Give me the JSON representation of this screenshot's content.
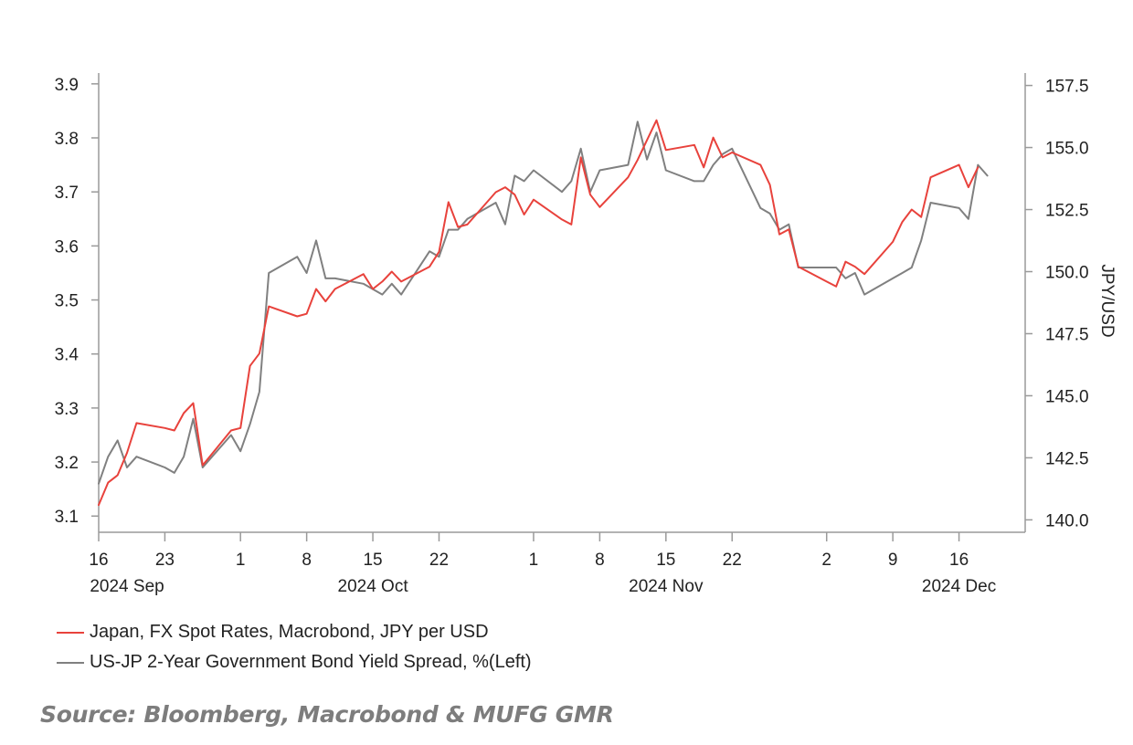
{
  "chart_data": {
    "type": "line",
    "x_axis": {
      "range": [
        "2024-09-16",
        "2024-12-23"
      ],
      "day_ticks": [
        {
          "date": "2024-09-16",
          "label": "16"
        },
        {
          "date": "2024-09-23",
          "label": "23"
        },
        {
          "date": "2024-10-01",
          "label": "1"
        },
        {
          "date": "2024-10-08",
          "label": "8"
        },
        {
          "date": "2024-10-15",
          "label": "15"
        },
        {
          "date": "2024-10-22",
          "label": "22"
        },
        {
          "date": "2024-11-01",
          "label": "1"
        },
        {
          "date": "2024-11-08",
          "label": "8"
        },
        {
          "date": "2024-11-15",
          "label": "15"
        },
        {
          "date": "2024-11-22",
          "label": "22"
        },
        {
          "date": "2024-12-02",
          "label": "2"
        },
        {
          "date": "2024-12-09",
          "label": "9"
        },
        {
          "date": "2024-12-16",
          "label": "16"
        }
      ],
      "month_labels": [
        {
          "date": "2024-09-19",
          "label": "2024 Sep"
        },
        {
          "date": "2024-10-15",
          "label": "2024 Oct"
        },
        {
          "date": "2024-11-15",
          "label": "2024 Nov"
        },
        {
          "date": "2024-12-16",
          "label": "2024 Dec"
        }
      ]
    },
    "y_left": {
      "range": [
        3.07,
        3.92
      ],
      "ticks": [
        {
          "value": 3.1,
          "label": "3.1"
        },
        {
          "value": 3.2,
          "label": "3.2"
        },
        {
          "value": 3.3,
          "label": "3.3"
        },
        {
          "value": 3.4,
          "label": "3.4"
        },
        {
          "value": 3.5,
          "label": "3.5"
        },
        {
          "value": 3.6,
          "label": "3.6"
        },
        {
          "value": 3.7,
          "label": "3.7"
        },
        {
          "value": 3.8,
          "label": "3.8"
        },
        {
          "value": 3.9,
          "label": "3.9"
        }
      ]
    },
    "y_right": {
      "label": "JPY/USD",
      "range": [
        139.5,
        158.0
      ],
      "ticks": [
        {
          "value": 140.0,
          "label": "140.0"
        },
        {
          "value": 142.5,
          "label": "142.5"
        },
        {
          "value": 145.0,
          "label": "145.0"
        },
        {
          "value": 147.5,
          "label": "147.5"
        },
        {
          "value": 150.0,
          "label": "150.0"
        },
        {
          "value": 152.5,
          "label": "152.5"
        },
        {
          "value": 155.0,
          "label": "155.0"
        },
        {
          "value": 157.5,
          "label": "157.5"
        }
      ]
    },
    "grid": false,
    "legend_position": "bottom-left",
    "series": [
      {
        "name": "Japan, FX Spot Rates, Macrobond, JPY per USD",
        "axis": "right",
        "color": "#e8423c",
        "points": [
          [
            "2024-09-16",
            140.6
          ],
          [
            "2024-09-17",
            141.5
          ],
          [
            "2024-09-18",
            141.8
          ],
          [
            "2024-09-19",
            142.7
          ],
          [
            "2024-09-20",
            143.9
          ],
          [
            "2024-09-23",
            143.7
          ],
          [
            "2024-09-24",
            143.6
          ],
          [
            "2024-09-25",
            144.3
          ],
          [
            "2024-09-26",
            144.7
          ],
          [
            "2024-09-27",
            142.2
          ],
          [
            "2024-09-30",
            143.6
          ],
          [
            "2024-10-01",
            143.7
          ],
          [
            "2024-10-02",
            146.2
          ],
          [
            "2024-10-03",
            146.7
          ],
          [
            "2024-10-04",
            148.6
          ],
          [
            "2024-10-07",
            148.2
          ],
          [
            "2024-10-08",
            148.3
          ],
          [
            "2024-10-09",
            149.3
          ],
          [
            "2024-10-10",
            148.8
          ],
          [
            "2024-10-11",
            149.3
          ],
          [
            "2024-10-14",
            149.9
          ],
          [
            "2024-10-15",
            149.3
          ],
          [
            "2024-10-16",
            149.6
          ],
          [
            "2024-10-17",
            150.0
          ],
          [
            "2024-10-18",
            149.6
          ],
          [
            "2024-10-21",
            150.2
          ],
          [
            "2024-10-22",
            150.8
          ],
          [
            "2024-10-23",
            152.8
          ],
          [
            "2024-10-24",
            151.8
          ],
          [
            "2024-10-25",
            151.9
          ],
          [
            "2024-10-28",
            153.2
          ],
          [
            "2024-10-29",
            153.4
          ],
          [
            "2024-10-30",
            153.1
          ],
          [
            "2024-10-31",
            152.3
          ],
          [
            "2024-11-01",
            152.9
          ],
          [
            "2024-11-04",
            152.1
          ],
          [
            "2024-11-05",
            151.9
          ],
          [
            "2024-11-06",
            154.6
          ],
          [
            "2024-11-07",
            153.1
          ],
          [
            "2024-11-08",
            152.6
          ],
          [
            "2024-11-11",
            153.8
          ],
          [
            "2024-11-12",
            154.5
          ],
          [
            "2024-11-13",
            155.3
          ],
          [
            "2024-11-14",
            156.1
          ],
          [
            "2024-11-15",
            154.9
          ],
          [
            "2024-11-18",
            155.1
          ],
          [
            "2024-11-19",
            154.2
          ],
          [
            "2024-11-20",
            155.4
          ],
          [
            "2024-11-21",
            154.6
          ],
          [
            "2024-11-22",
            154.8
          ],
          [
            "2024-11-25",
            154.3
          ],
          [
            "2024-11-26",
            153.5
          ],
          [
            "2024-11-27",
            151.5
          ],
          [
            "2024-11-28",
            151.7
          ],
          [
            "2024-11-29",
            150.2
          ],
          [
            "2024-12-02",
            149.6
          ],
          [
            "2024-12-03",
            149.4
          ],
          [
            "2024-12-04",
            150.4
          ],
          [
            "2024-12-05",
            150.2
          ],
          [
            "2024-12-06",
            149.9
          ],
          [
            "2024-12-09",
            151.2
          ],
          [
            "2024-12-10",
            152.0
          ],
          [
            "2024-12-11",
            152.5
          ],
          [
            "2024-12-12",
            152.2
          ],
          [
            "2024-12-13",
            153.8
          ],
          [
            "2024-12-16",
            154.3
          ],
          [
            "2024-12-17",
            153.4
          ],
          [
            "2024-12-18",
            154.2
          ]
        ]
      },
      {
        "name": "US-JP 2-Year Government Bond Yield Spread, %(Left)",
        "axis": "left",
        "color": "#808080",
        "points": [
          [
            "2024-09-16",
            3.16
          ],
          [
            "2024-09-17",
            3.21
          ],
          [
            "2024-09-18",
            3.24
          ],
          [
            "2024-09-19",
            3.19
          ],
          [
            "2024-09-20",
            3.21
          ],
          [
            "2024-09-23",
            3.19
          ],
          [
            "2024-09-24",
            3.18
          ],
          [
            "2024-09-25",
            3.21
          ],
          [
            "2024-09-26",
            3.28
          ],
          [
            "2024-09-27",
            3.19
          ],
          [
            "2024-09-30",
            3.25
          ],
          [
            "2024-10-01",
            3.22
          ],
          [
            "2024-10-02",
            3.27
          ],
          [
            "2024-10-03",
            3.33
          ],
          [
            "2024-10-04",
            3.55
          ],
          [
            "2024-10-07",
            3.58
          ],
          [
            "2024-10-08",
            3.55
          ],
          [
            "2024-10-09",
            3.61
          ],
          [
            "2024-10-10",
            3.54
          ],
          [
            "2024-10-11",
            3.54
          ],
          [
            "2024-10-14",
            3.53
          ],
          [
            "2024-10-15",
            3.52
          ],
          [
            "2024-10-16",
            3.51
          ],
          [
            "2024-10-17",
            3.53
          ],
          [
            "2024-10-18",
            3.51
          ],
          [
            "2024-10-21",
            3.59
          ],
          [
            "2024-10-22",
            3.58
          ],
          [
            "2024-10-23",
            3.63
          ],
          [
            "2024-10-24",
            3.63
          ],
          [
            "2024-10-25",
            3.65
          ],
          [
            "2024-10-28",
            3.68
          ],
          [
            "2024-10-29",
            3.64
          ],
          [
            "2024-10-30",
            3.73
          ],
          [
            "2024-10-31",
            3.72
          ],
          [
            "2024-11-01",
            3.74
          ],
          [
            "2024-11-04",
            3.7
          ],
          [
            "2024-11-05",
            3.72
          ],
          [
            "2024-11-06",
            3.78
          ],
          [
            "2024-11-07",
            3.7
          ],
          [
            "2024-11-08",
            3.74
          ],
          [
            "2024-11-11",
            3.75
          ],
          [
            "2024-11-12",
            3.83
          ],
          [
            "2024-11-13",
            3.76
          ],
          [
            "2024-11-14",
            3.81
          ],
          [
            "2024-11-15",
            3.74
          ],
          [
            "2024-11-18",
            3.72
          ],
          [
            "2024-11-19",
            3.72
          ],
          [
            "2024-11-20",
            3.75
          ],
          [
            "2024-11-21",
            3.77
          ],
          [
            "2024-11-22",
            3.78
          ],
          [
            "2024-11-25",
            3.67
          ],
          [
            "2024-11-26",
            3.66
          ],
          [
            "2024-11-27",
            3.63
          ],
          [
            "2024-11-28",
            3.64
          ],
          [
            "2024-11-29",
            3.56
          ],
          [
            "2024-12-02",
            3.56
          ],
          [
            "2024-12-03",
            3.56
          ],
          [
            "2024-12-04",
            3.54
          ],
          [
            "2024-12-05",
            3.55
          ],
          [
            "2024-12-06",
            3.51
          ],
          [
            "2024-12-09",
            3.54
          ],
          [
            "2024-12-10",
            3.55
          ],
          [
            "2024-12-11",
            3.56
          ],
          [
            "2024-12-12",
            3.61
          ],
          [
            "2024-12-13",
            3.68
          ],
          [
            "2024-12-16",
            3.67
          ],
          [
            "2024-12-17",
            3.65
          ],
          [
            "2024-12-18",
            3.75
          ],
          [
            "2024-12-19",
            3.73
          ]
        ]
      }
    ]
  },
  "source": "Source: Bloomberg, Macrobond & MUFG GMR"
}
